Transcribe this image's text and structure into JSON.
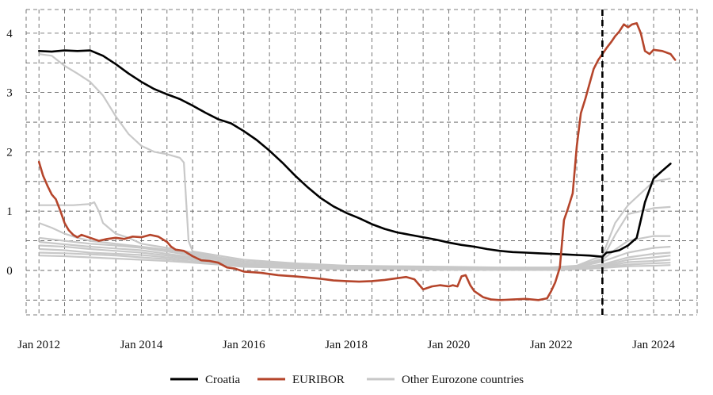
{
  "chart_data": {
    "type": "line",
    "title": "",
    "xlabel": "",
    "ylabel": "",
    "x_range": [
      2011.75,
      2024.85
    ],
    "ylim": [
      -0.75,
      4.4
    ],
    "x_ticks": [
      {
        "value": 2012.0,
        "label": "Jan 2012"
      },
      {
        "value": 2014.0,
        "label": "Jan 2014"
      },
      {
        "value": 2016.0,
        "label": "Jan 2016"
      },
      {
        "value": 2018.0,
        "label": "Jan 2018"
      },
      {
        "value": 2020.0,
        "label": "Jan 2020"
      },
      {
        "value": 2022.0,
        "label": "Jan 2022"
      },
      {
        "value": 2024.0,
        "label": "Jan 2024"
      }
    ],
    "y_ticks": [
      {
        "value": 0,
        "label": "0"
      },
      {
        "value": 1,
        "label": "1"
      },
      {
        "value": 2,
        "label": "2"
      },
      {
        "value": 3,
        "label": "3"
      },
      {
        "value": 4,
        "label": "4"
      }
    ],
    "grid_x": [
      2011.75,
      2012.0,
      2012.5,
      2013.0,
      2013.5,
      2014.0,
      2014.5,
      2015.0,
      2015.5,
      2016.0,
      2016.5,
      2017.0,
      2017.5,
      2018.0,
      2018.5,
      2019.0,
      2019.5,
      2020.0,
      2020.5,
      2021.0,
      2021.5,
      2022.0,
      2022.5,
      2023.0,
      2023.5,
      2024.0,
      2024.5,
      2024.85
    ],
    "grid_y": [
      -0.5,
      0,
      0.5,
      1,
      1.5,
      2,
      2.5,
      3,
      3.5,
      4
    ],
    "grid": true,
    "vline": {
      "x": 2023.0,
      "style": "dashed"
    },
    "legend_position": "bottom-center",
    "series": [
      {
        "name": "Croatia",
        "color": "#000000",
        "role": "main",
        "x": [
          2012.0,
          2012.25,
          2012.5,
          2012.75,
          2013.0,
          2013.25,
          2013.5,
          2013.75,
          2014.0,
          2014.25,
          2014.5,
          2014.75,
          2015.0,
          2015.25,
          2015.5,
          2015.75,
          2016.0,
          2016.25,
          2016.5,
          2016.75,
          2017.0,
          2017.25,
          2017.5,
          2017.75,
          2018.0,
          2018.25,
          2018.5,
          2018.75,
          2019.0,
          2019.25,
          2019.5,
          2019.75,
          2020.0,
          2020.25,
          2020.5,
          2020.75,
          2021.0,
          2021.25,
          2021.5,
          2021.75,
          2022.0,
          2022.25,
          2022.5,
          2022.75,
          2023.0,
          2023.08,
          2023.17,
          2023.33,
          2023.5,
          2023.67,
          2023.75,
          2023.83,
          2024.0,
          2024.17,
          2024.33
        ],
        "y": [
          3.7,
          3.69,
          3.71,
          3.7,
          3.71,
          3.62,
          3.48,
          3.32,
          3.18,
          3.06,
          2.97,
          2.89,
          2.78,
          2.66,
          2.55,
          2.48,
          2.35,
          2.2,
          2.02,
          1.82,
          1.6,
          1.4,
          1.22,
          1.08,
          0.97,
          0.88,
          0.78,
          0.7,
          0.64,
          0.6,
          0.56,
          0.52,
          0.47,
          0.43,
          0.4,
          0.36,
          0.33,
          0.31,
          0.3,
          0.29,
          0.28,
          0.27,
          0.26,
          0.25,
          0.23,
          0.3,
          0.31,
          0.34,
          0.42,
          0.55,
          0.85,
          1.15,
          1.55,
          1.68,
          1.8
        ]
      },
      {
        "name": "EURIBOR",
        "color": "#b5452b",
        "role": "main",
        "x": [
          2012.0,
          2012.08,
          2012.17,
          2012.25,
          2012.33,
          2012.42,
          2012.5,
          2012.58,
          2012.67,
          2012.75,
          2012.83,
          2013.0,
          2013.17,
          2013.33,
          2013.5,
          2013.67,
          2013.83,
          2014.0,
          2014.17,
          2014.33,
          2014.5,
          2014.58,
          2014.67,
          2014.75,
          2014.83,
          2015.0,
          2015.17,
          2015.33,
          2015.5,
          2015.67,
          2015.83,
          2016.0,
          2016.17,
          2016.33,
          2016.5,
          2016.67,
          2016.83,
          2017.0,
          2017.25,
          2017.5,
          2017.75,
          2018.0,
          2018.25,
          2018.5,
          2018.75,
          2019.0,
          2019.17,
          2019.33,
          2019.5,
          2019.67,
          2019.83,
          2020.0,
          2020.08,
          2020.17,
          2020.25,
          2020.33,
          2020.42,
          2020.5,
          2020.67,
          2020.83,
          2021.0,
          2021.25,
          2021.5,
          2021.75,
          2021.92,
          2022.0,
          2022.08,
          2022.17,
          2022.25,
          2022.33,
          2022.42,
          2022.5,
          2022.58,
          2022.67,
          2022.75,
          2022.83,
          2022.92,
          2023.0,
          2023.08,
          2023.17,
          2023.25,
          2023.33,
          2023.42,
          2023.5,
          2023.58,
          2023.67,
          2023.75,
          2023.83,
          2023.92,
          2024.0,
          2024.17,
          2024.33,
          2024.42
        ],
        "y": [
          1.83,
          1.6,
          1.42,
          1.28,
          1.2,
          1.0,
          0.8,
          0.68,
          0.6,
          0.56,
          0.6,
          0.55,
          0.5,
          0.53,
          0.55,
          0.53,
          0.57,
          0.56,
          0.6,
          0.57,
          0.48,
          0.4,
          0.35,
          0.34,
          0.33,
          0.24,
          0.17,
          0.16,
          0.13,
          0.05,
          0.03,
          -0.02,
          -0.03,
          -0.04,
          -0.06,
          -0.08,
          -0.09,
          -0.1,
          -0.12,
          -0.14,
          -0.17,
          -0.18,
          -0.19,
          -0.18,
          -0.16,
          -0.13,
          -0.11,
          -0.15,
          -0.32,
          -0.27,
          -0.25,
          -0.27,
          -0.25,
          -0.27,
          -0.1,
          -0.08,
          -0.25,
          -0.35,
          -0.45,
          -0.49,
          -0.5,
          -0.49,
          -0.48,
          -0.5,
          -0.47,
          -0.35,
          -0.2,
          0.05,
          0.85,
          1.05,
          1.3,
          2.1,
          2.65,
          2.9,
          3.15,
          3.4,
          3.55,
          3.65,
          3.75,
          3.85,
          3.95,
          4.03,
          4.15,
          4.1,
          4.15,
          4.17,
          4.0,
          3.7,
          3.65,
          3.72,
          3.7,
          3.65,
          3.55
        ]
      },
      {
        "name": "Other Eurozone countries",
        "color": "#c8c8c8",
        "role": "legend"
      }
    ],
    "background_series": [
      {
        "x": [
          2012.0,
          2012.25,
          2012.5,
          2012.75,
          2013.0,
          2013.25,
          2013.5,
          2013.75,
          2014.0,
          2014.25,
          2014.5,
          2014.75,
          2014.83,
          2014.92,
          2015.0,
          2015.5,
          2016.0,
          2017.0,
          2018.0,
          2019.0,
          2020.0,
          2021.0,
          2022.0,
          2022.5,
          2023.0,
          2023.25,
          2023.5,
          2024.0,
          2024.33
        ],
        "y": [
          3.65,
          3.62,
          3.45,
          3.32,
          3.18,
          2.95,
          2.6,
          2.3,
          2.1,
          2.0,
          1.96,
          1.9,
          1.82,
          0.5,
          0.32,
          0.25,
          0.18,
          0.12,
          0.08,
          0.07,
          0.06,
          0.05,
          0.05,
          0.08,
          0.25,
          0.8,
          1.1,
          1.5,
          1.55
        ]
      },
      {
        "x": [
          2012.0,
          2012.33,
          2012.67,
          2013.0,
          2013.08,
          2013.17,
          2013.25,
          2013.5,
          2013.75,
          2014.0,
          2014.5,
          2015.0,
          2015.5,
          2016.0,
          2017.0,
          2018.0,
          2019.0,
          2020.0,
          2021.0,
          2022.0,
          2022.5,
          2023.0,
          2023.25,
          2023.5,
          2024.0,
          2024.33
        ],
        "y": [
          1.1,
          1.1,
          1.1,
          1.12,
          1.15,
          1.0,
          0.8,
          0.62,
          0.55,
          0.45,
          0.38,
          0.3,
          0.22,
          0.15,
          0.1,
          0.08,
          0.06,
          0.05,
          0.04,
          0.04,
          0.07,
          0.2,
          0.6,
          0.95,
          1.05,
          1.07
        ]
      },
      {
        "x": [
          2012.0,
          2012.25,
          2012.5,
          2012.75,
          2013.0,
          2013.5,
          2014.0,
          2014.5,
          2015.0,
          2015.5,
          2016.0,
          2017.0,
          2018.0,
          2019.0,
          2020.0,
          2021.0,
          2022.0,
          2022.5,
          2023.0,
          2023.25,
          2023.5,
          2024.0,
          2024.33
        ],
        "y": [
          0.8,
          0.72,
          0.62,
          0.55,
          0.5,
          0.45,
          0.4,
          0.35,
          0.28,
          0.2,
          0.12,
          0.08,
          0.06,
          0.05,
          0.04,
          0.03,
          0.03,
          0.06,
          0.18,
          0.35,
          0.5,
          0.58,
          0.58
        ]
      },
      {
        "x": [
          2012.0,
          2012.5,
          2013.0,
          2013.5,
          2014.0,
          2014.5,
          2015.0,
          2015.5,
          2016.0,
          2017.0,
          2018.0,
          2019.0,
          2020.0,
          2021.0,
          2022.0,
          2022.5,
          2023.0,
          2023.5,
          2024.0,
          2024.33
        ],
        "y": [
          0.55,
          0.5,
          0.45,
          0.42,
          0.38,
          0.32,
          0.25,
          0.18,
          0.12,
          0.07,
          0.05,
          0.04,
          0.03,
          0.02,
          0.02,
          0.05,
          0.15,
          0.3,
          0.38,
          0.4
        ]
      },
      {
        "x": [
          2012.0,
          2012.5,
          2013.0,
          2013.5,
          2014.0,
          2014.5,
          2015.0,
          2015.5,
          2016.0,
          2017.0,
          2018.0,
          2019.0,
          2020.0,
          2021.0,
          2022.0,
          2022.5,
          2023.0,
          2023.5,
          2024.0,
          2024.33
        ],
        "y": [
          0.48,
          0.44,
          0.4,
          0.37,
          0.34,
          0.28,
          0.22,
          0.15,
          0.1,
          0.06,
          0.04,
          0.03,
          0.02,
          0.02,
          0.02,
          0.04,
          0.1,
          0.22,
          0.28,
          0.3
        ]
      },
      {
        "x": [
          2012.0,
          2012.5,
          2013.0,
          2013.5,
          2014.0,
          2014.5,
          2015.0,
          2015.5,
          2016.0,
          2017.0,
          2018.0,
          2019.0,
          2020.0,
          2021.0,
          2022.0,
          2022.5,
          2023.0,
          2023.5,
          2024.0,
          2024.33
        ],
        "y": [
          0.42,
          0.4,
          0.36,
          0.33,
          0.3,
          0.25,
          0.2,
          0.14,
          0.09,
          0.05,
          0.04,
          0.03,
          0.02,
          0.01,
          0.01,
          0.03,
          0.08,
          0.18,
          0.22,
          0.25
        ]
      },
      {
        "x": [
          2012.0,
          2012.5,
          2013.0,
          2013.5,
          2014.0,
          2014.5,
          2015.0,
          2015.5,
          2016.0,
          2017.0,
          2018.0,
          2019.0,
          2020.0,
          2021.0,
          2022.0,
          2022.5,
          2023.0,
          2023.5,
          2024.0,
          2024.33
        ],
        "y": [
          0.36,
          0.34,
          0.3,
          0.28,
          0.26,
          0.22,
          0.18,
          0.13,
          0.08,
          0.05,
          0.03,
          0.02,
          0.02,
          0.01,
          0.01,
          0.02,
          0.06,
          0.14,
          0.16,
          0.18
        ]
      },
      {
        "x": [
          2012.0,
          2012.5,
          2013.0,
          2013.5,
          2014.0,
          2014.5,
          2015.0,
          2015.5,
          2016.0,
          2017.0,
          2018.0,
          2019.0,
          2020.0,
          2021.0,
          2022.0,
          2022.5,
          2023.0,
          2023.5,
          2024.0,
          2024.33
        ],
        "y": [
          0.3,
          0.29,
          0.27,
          0.25,
          0.22,
          0.19,
          0.15,
          0.11,
          0.07,
          0.04,
          0.03,
          0.02,
          0.01,
          0.01,
          0.01,
          0.02,
          0.05,
          0.1,
          0.12,
          0.13
        ]
      },
      {
        "x": [
          2012.0,
          2012.5,
          2013.0,
          2013.5,
          2014.0,
          2014.5,
          2015.0,
          2015.5,
          2016.0,
          2017.0,
          2018.0,
          2019.0,
          2020.0,
          2021.0,
          2022.0,
          2022.5,
          2023.0,
          2023.5,
          2024.0,
          2024.33
        ],
        "y": [
          0.25,
          0.24,
          0.22,
          0.2,
          0.18,
          0.16,
          0.13,
          0.1,
          0.06,
          0.04,
          0.02,
          0.02,
          0.01,
          0.01,
          0.01,
          0.02,
          0.04,
          0.07,
          0.08,
          0.09
        ]
      }
    ]
  },
  "legend": {
    "items": [
      {
        "label": "Croatia",
        "color": "#000000"
      },
      {
        "label": "EURIBOR",
        "color": "#b5452b"
      },
      {
        "label": "Other Eurozone countries",
        "color": "#c8c8c8"
      }
    ]
  }
}
